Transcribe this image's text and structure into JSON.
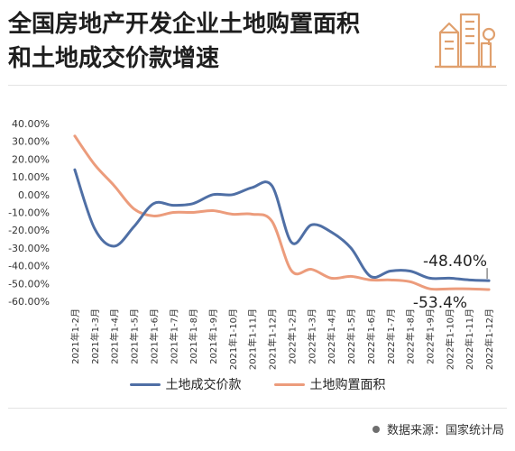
{
  "title_lines": [
    "全国房地产开发企业土地购置面积",
    "和土地成交价款增速"
  ],
  "source": "数据来源：国家统计局",
  "colors": {
    "land_price": "#4f6fa5",
    "land_area": "#ec9c7c",
    "logo": "#e0a06e"
  },
  "chart_data": {
    "type": "line",
    "title": "全国房地产开发企业土地购置面积和土地成交价款增速",
    "categories": [
      "2021年1-2月",
      "2021年1-3月",
      "2021年1-4月",
      "2021年1-5月",
      "2021年1-6月",
      "2021年1-7月",
      "2021年1-8月",
      "2021年1-9月",
      "2021年1-10月",
      "2021年1-11月",
      "2021年1-12月",
      "2022年1-2月",
      "2022年1-3月",
      "2022年1-4月",
      "2022年1-5月",
      "2022年1-6月",
      "2022年1-7月",
      "2022年1-8月",
      "2022年1-9月",
      "2022年1-10月",
      "2022年1-11月",
      "2022年1-12月"
    ],
    "y_ticks": [
      "40.00%",
      "30.00%",
      "20.00%",
      "10.00%",
      "0.00%",
      "-10.00%",
      "-20.00%",
      "-30.00%",
      "-40.00%",
      "-50.00%",
      "-60.00%"
    ],
    "ylim": [
      -60,
      40
    ],
    "series": [
      {
        "name": "土地成交价款",
        "values": [
          14,
          -19,
          -29,
          -18,
          -5,
          -6,
          -5,
          0,
          0,
          4,
          5,
          -27,
          -17,
          -21,
          -30,
          -46,
          -43,
          -43,
          -47,
          -47,
          -48,
          -48.4
        ]
      },
      {
        "name": "土地购置面积",
        "values": [
          33,
          17,
          5,
          -8,
          -12,
          -10,
          -10,
          -9,
          -11,
          -11,
          -15,
          -43,
          -42,
          -47,
          -46,
          -48,
          -48,
          -49,
          -53,
          -53,
          -53,
          -53.4
        ]
      }
    ],
    "annotations": [
      "-48.40%",
      "-53.4%"
    ],
    "legend": "bottom-center",
    "grid": false
  }
}
